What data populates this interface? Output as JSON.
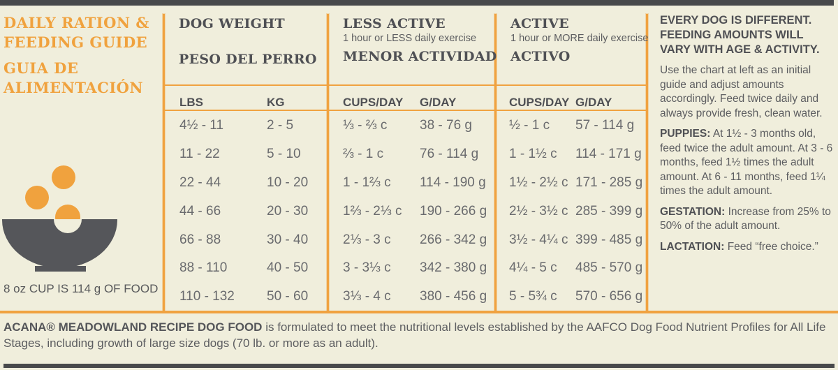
{
  "colors": {
    "background": "#F0EEDC",
    "accent_orange": "#F0A240",
    "dark_gray": "#55565A",
    "text_gray": "#6A6B6E"
  },
  "left_panel": {
    "title_en": "DAILY RATION & FEEDING GUIDE",
    "title_en_line1": "DAILY RATION &",
    "title_en_line2": "FEEDING GUIDE",
    "title_es_line1": "GUIA DE",
    "title_es_line2": "ALIMENTACIÓN",
    "cup_note": "8 oz CUP IS 114 g OF FOOD"
  },
  "table": {
    "weight_header": {
      "en": "DOG WEIGHT",
      "es": "PESO DEL PERRO"
    },
    "less_active_header": {
      "en": "LESS ACTIVE",
      "sub": "1 hour or LESS daily exercise",
      "es": "MENOR ACTIVIDAD"
    },
    "active_header": {
      "en": "ACTIVE",
      "sub": "1 hour or MORE daily exercise",
      "es": "ACTIVO"
    },
    "subheaders": {
      "lbs": "LBS",
      "kg": "KG",
      "cups": "CUPS/DAY",
      "grams": "G/DAY"
    },
    "rows": [
      {
        "lbs": "4½ - 11",
        "kg": "2 - 5",
        "la_cups": "⅓ - ⅔ c",
        "la_g": "38 - 76 g",
        "a_cups": "½ - 1 c",
        "a_g": "57 - 114 g"
      },
      {
        "lbs": "11 - 22",
        "kg": "5 - 10",
        "la_cups": "⅔ - 1 c",
        "la_g": "76 - 114 g",
        "a_cups": "1 - 1½ c",
        "a_g": "114 - 171 g"
      },
      {
        "lbs": "22 - 44",
        "kg": "10 - 20",
        "la_cups": "1 - 1⅔ c",
        "la_g": "114 - 190 g",
        "a_cups": "1½ - 2½ c",
        "a_g": "171 - 285 g"
      },
      {
        "lbs": "44 - 66",
        "kg": "20 - 30",
        "la_cups": "1⅔ - 2⅓ c",
        "la_g": "190 - 266 g",
        "a_cups": "2½ - 3½ c",
        "a_g": "285 - 399 g"
      },
      {
        "lbs": "66 - 88",
        "kg": "30 - 40",
        "la_cups": "2⅓ - 3 c",
        "la_g": "266 - 342 g",
        "a_cups": "3½ - 4¼ c",
        "a_g": "399 - 485 g"
      },
      {
        "lbs": "88 - 110",
        "kg": "40 - 50",
        "la_cups": "3 - 3⅓ c",
        "la_g": "342 - 380 g",
        "a_cups": "4¼ - 5 c",
        "a_g": "485 - 570 g"
      },
      {
        "lbs": "110 - 132",
        "kg": "50 - 60",
        "la_cups": "3⅓ - 4 c",
        "la_g": "380 - 456 g",
        "a_cups": "5 - 5¾ c",
        "a_g": "570 - 656 g"
      }
    ]
  },
  "right_panel": {
    "heading": "EVERY DOG IS DIFFERENT. FEEDING AMOUNTS WILL VARY WITH AGE & ACTIVITY.",
    "intro": "Use the chart at left as an initial guide and adjust amounts accordingly. Feed twice daily and always provide fresh, clean water.",
    "puppies_label": "PUPPIES:",
    "puppies_text": "At 1½ - 3 months old, feed twice the adult amount. At 3 - 6 months, feed 1½ times the adult amount. At 6 - 11 months, feed 1¼ times the adult amount.",
    "gestation_label": "GESTATION:",
    "gestation_text": "Increase from 25% to 50% of the adult amount.",
    "lactation_label": "LACTATION:",
    "lactation_text": "Feed “free choice.”"
  },
  "footer": {
    "brand": "ACANA® MEADOWLAND RECIPE DOG FOOD",
    "text": "is formulated to meet the nutritional levels established by the AAFCO Dog Food Nutrient Profiles for All Life Stages, including growth of large size dogs (70 lb. or more as an adult)."
  }
}
